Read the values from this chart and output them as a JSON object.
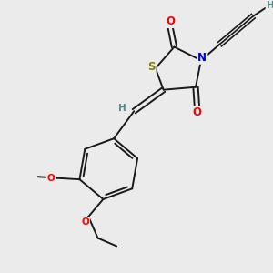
{
  "bg_color": "#ebebeb",
  "atom_colors": {
    "S": "#808000",
    "N": "#0000cc",
    "O": "#ff0000",
    "C": "#1a1a1a",
    "H": "#5a8a8a"
  },
  "bond_color": "#1a1a1a",
  "font_size": 7.5,
  "figsize": [
    3.0,
    3.0
  ],
  "dpi": 100
}
